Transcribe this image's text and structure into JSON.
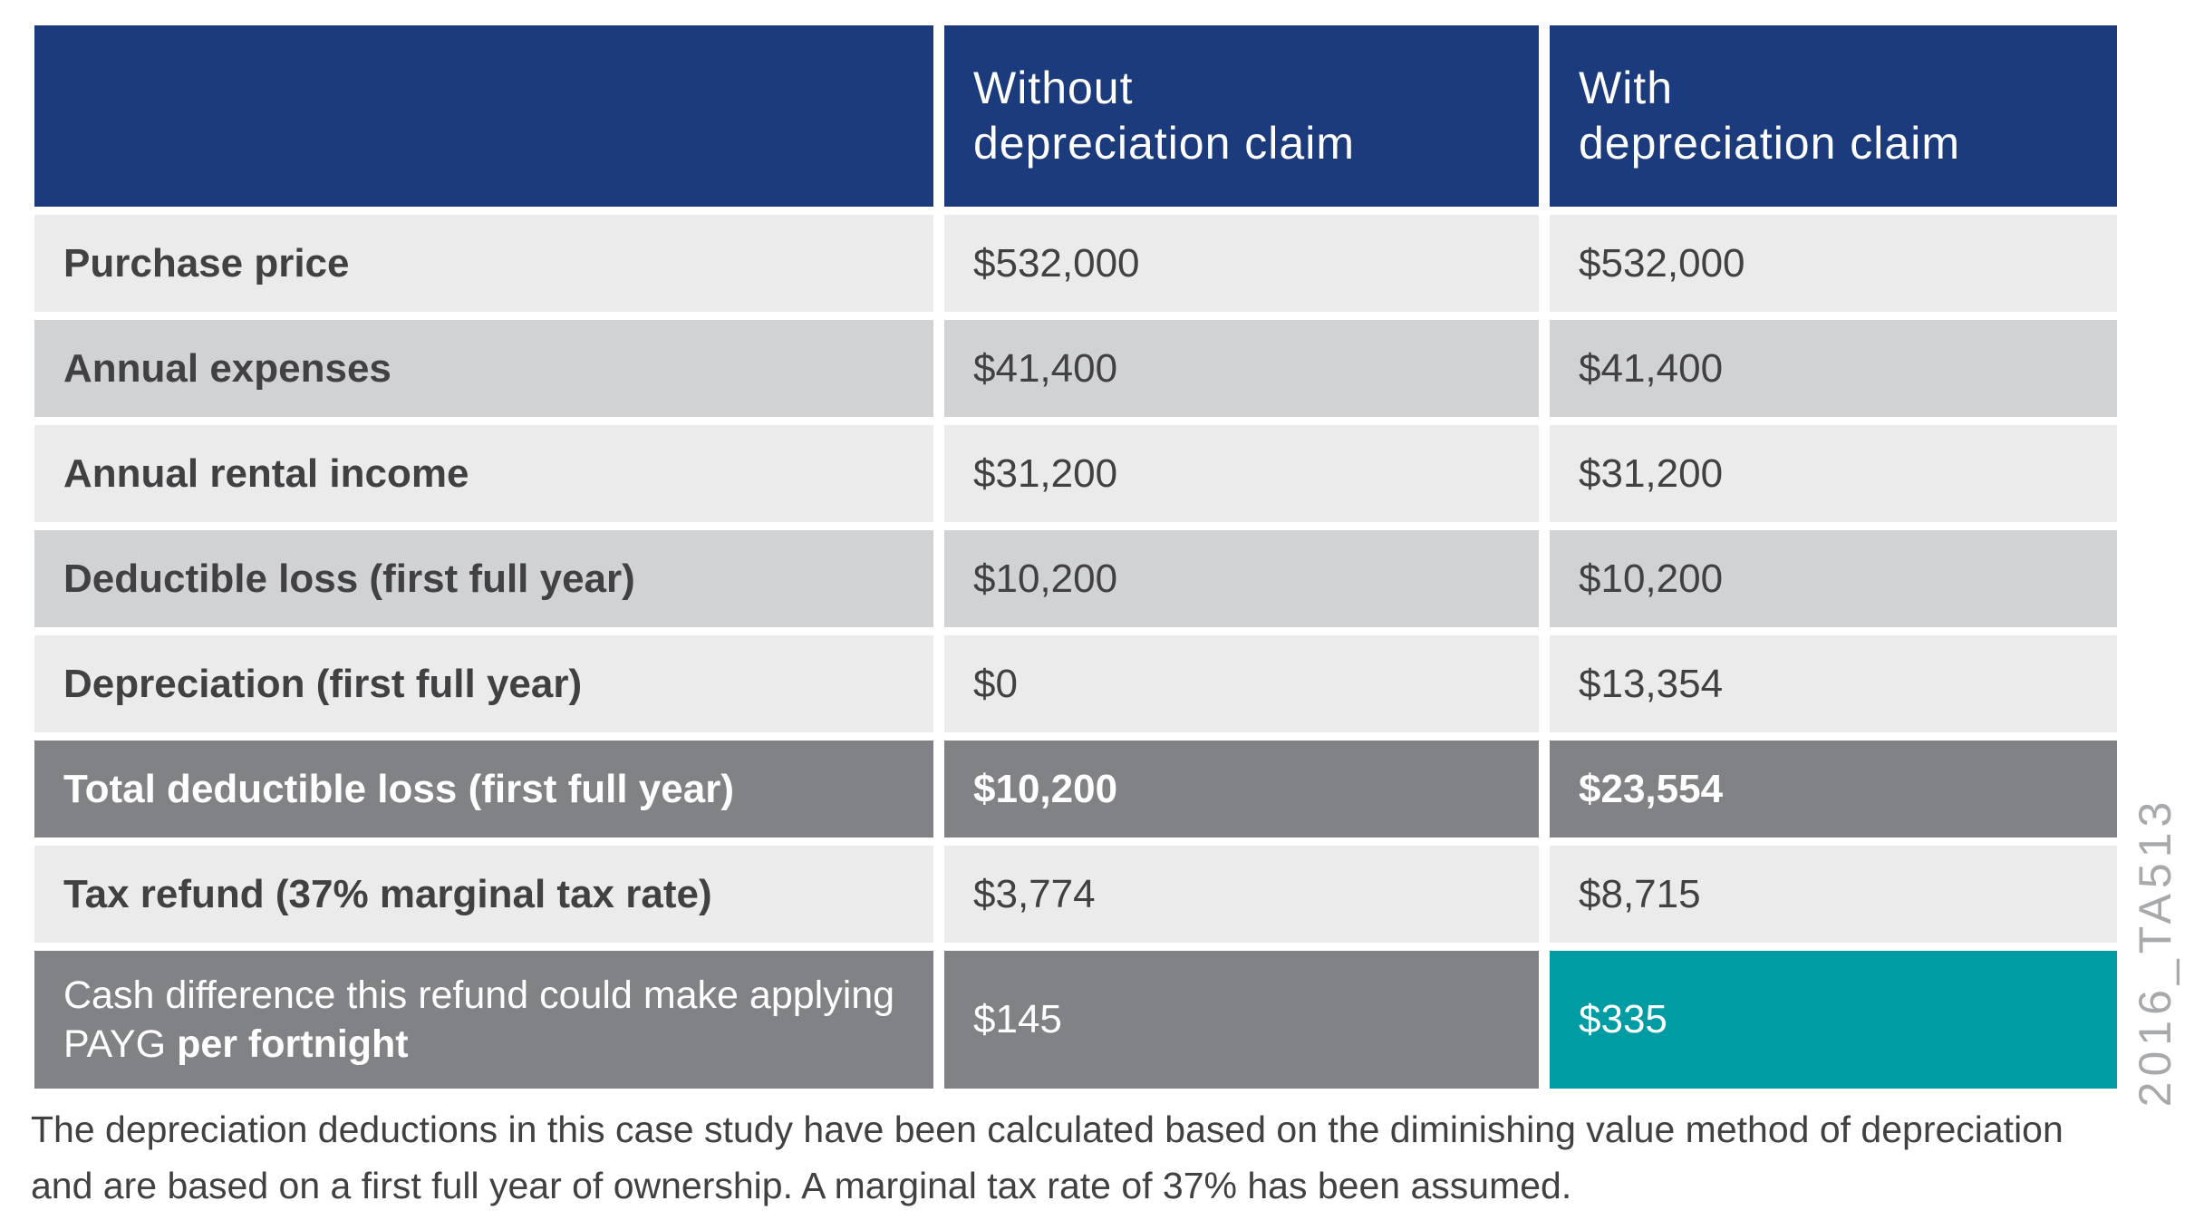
{
  "colors": {
    "navy": "#1B3B7C",
    "lightgray": "#EBEBEB",
    "mediumgray": "#D1D2D3",
    "darkgray": "#808285",
    "teal": "#009CA4",
    "text": "#414042",
    "watermark": "#A7A9AC"
  },
  "table": {
    "columns": [
      {
        "line1": "",
        "line2": ""
      },
      {
        "line1": "Without",
        "line2": "depreciation claim"
      },
      {
        "line1": "With",
        "line2": "depreciation claim"
      }
    ],
    "rows": [
      {
        "label": "Purchase price",
        "without": "$532,000",
        "with": "$532,000"
      },
      {
        "label": "Annual expenses",
        "without": "$41,400",
        "with": "$41,400"
      },
      {
        "label": "Annual rental income",
        "without": "$31,200",
        "with": "$31,200"
      },
      {
        "label": "Deductible loss (first full year)",
        "without": "$10,200",
        "with": "$10,200"
      },
      {
        "label": "Depreciation (first full year)",
        "without": "$0",
        "with": "$13,354"
      },
      {
        "label": "Total deductible loss (first full year)",
        "without": "$10,200",
        "with": "$23,554"
      },
      {
        "label": "Tax refund (37% marginal tax rate)",
        "without": "$3,774",
        "with": "$8,715"
      },
      {
        "label_main": "Cash difference this refund could make applying PAYG ",
        "label_bold": "per fortnight",
        "without": "$145",
        "with": "$335"
      }
    ]
  },
  "footnote": "The depreciation deductions in this case study have been calculated based on the diminishing value method of depreciation and are based on a first full year of ownership. A marginal tax rate of 37% has been assumed.",
  "watermark": "2016_TA513"
}
